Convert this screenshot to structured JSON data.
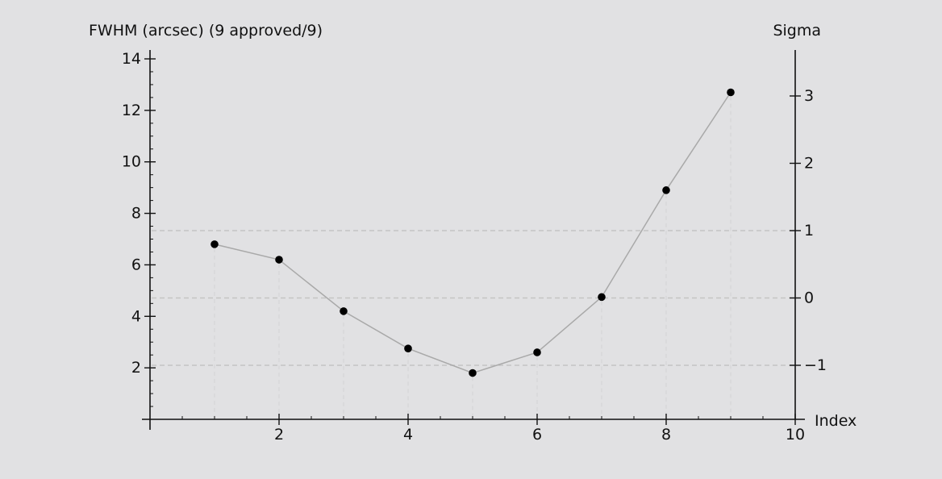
{
  "chart_data": {
    "type": "line",
    "title": "",
    "left_axis_label": "FWHM (arcsec) (9 approved/9)",
    "right_axis_label": "Sigma",
    "xlabel": "Index",
    "xlim": [
      0,
      10
    ],
    "ylim": [
      0,
      14
    ],
    "y2lim": [
      -1.8,
      3.6
    ],
    "x_ticks": [
      2,
      4,
      6,
      8,
      10
    ],
    "y_ticks": [
      2,
      4,
      6,
      8,
      10,
      12,
      14
    ],
    "y2_ticks": [
      -1,
      0,
      1,
      2,
      3
    ],
    "y2_tick_labels": [
      "−1",
      "0",
      "1",
      "2",
      "3"
    ],
    "sigma_reference_lines": [
      -1,
      0,
      1
    ],
    "series": [
      {
        "x": [
          1,
          2,
          3,
          4,
          5,
          6,
          7,
          8,
          9
        ],
        "y": [
          6.8,
          6.2,
          4.2,
          2.75,
          1.8,
          2.6,
          4.75,
          8.9,
          12.7
        ],
        "color": "#000000",
        "line_color": "#a9a9a9"
      }
    ],
    "grid": "dashed sigma lines and faint vertical lines at data points",
    "background": "#e1e1e3"
  }
}
